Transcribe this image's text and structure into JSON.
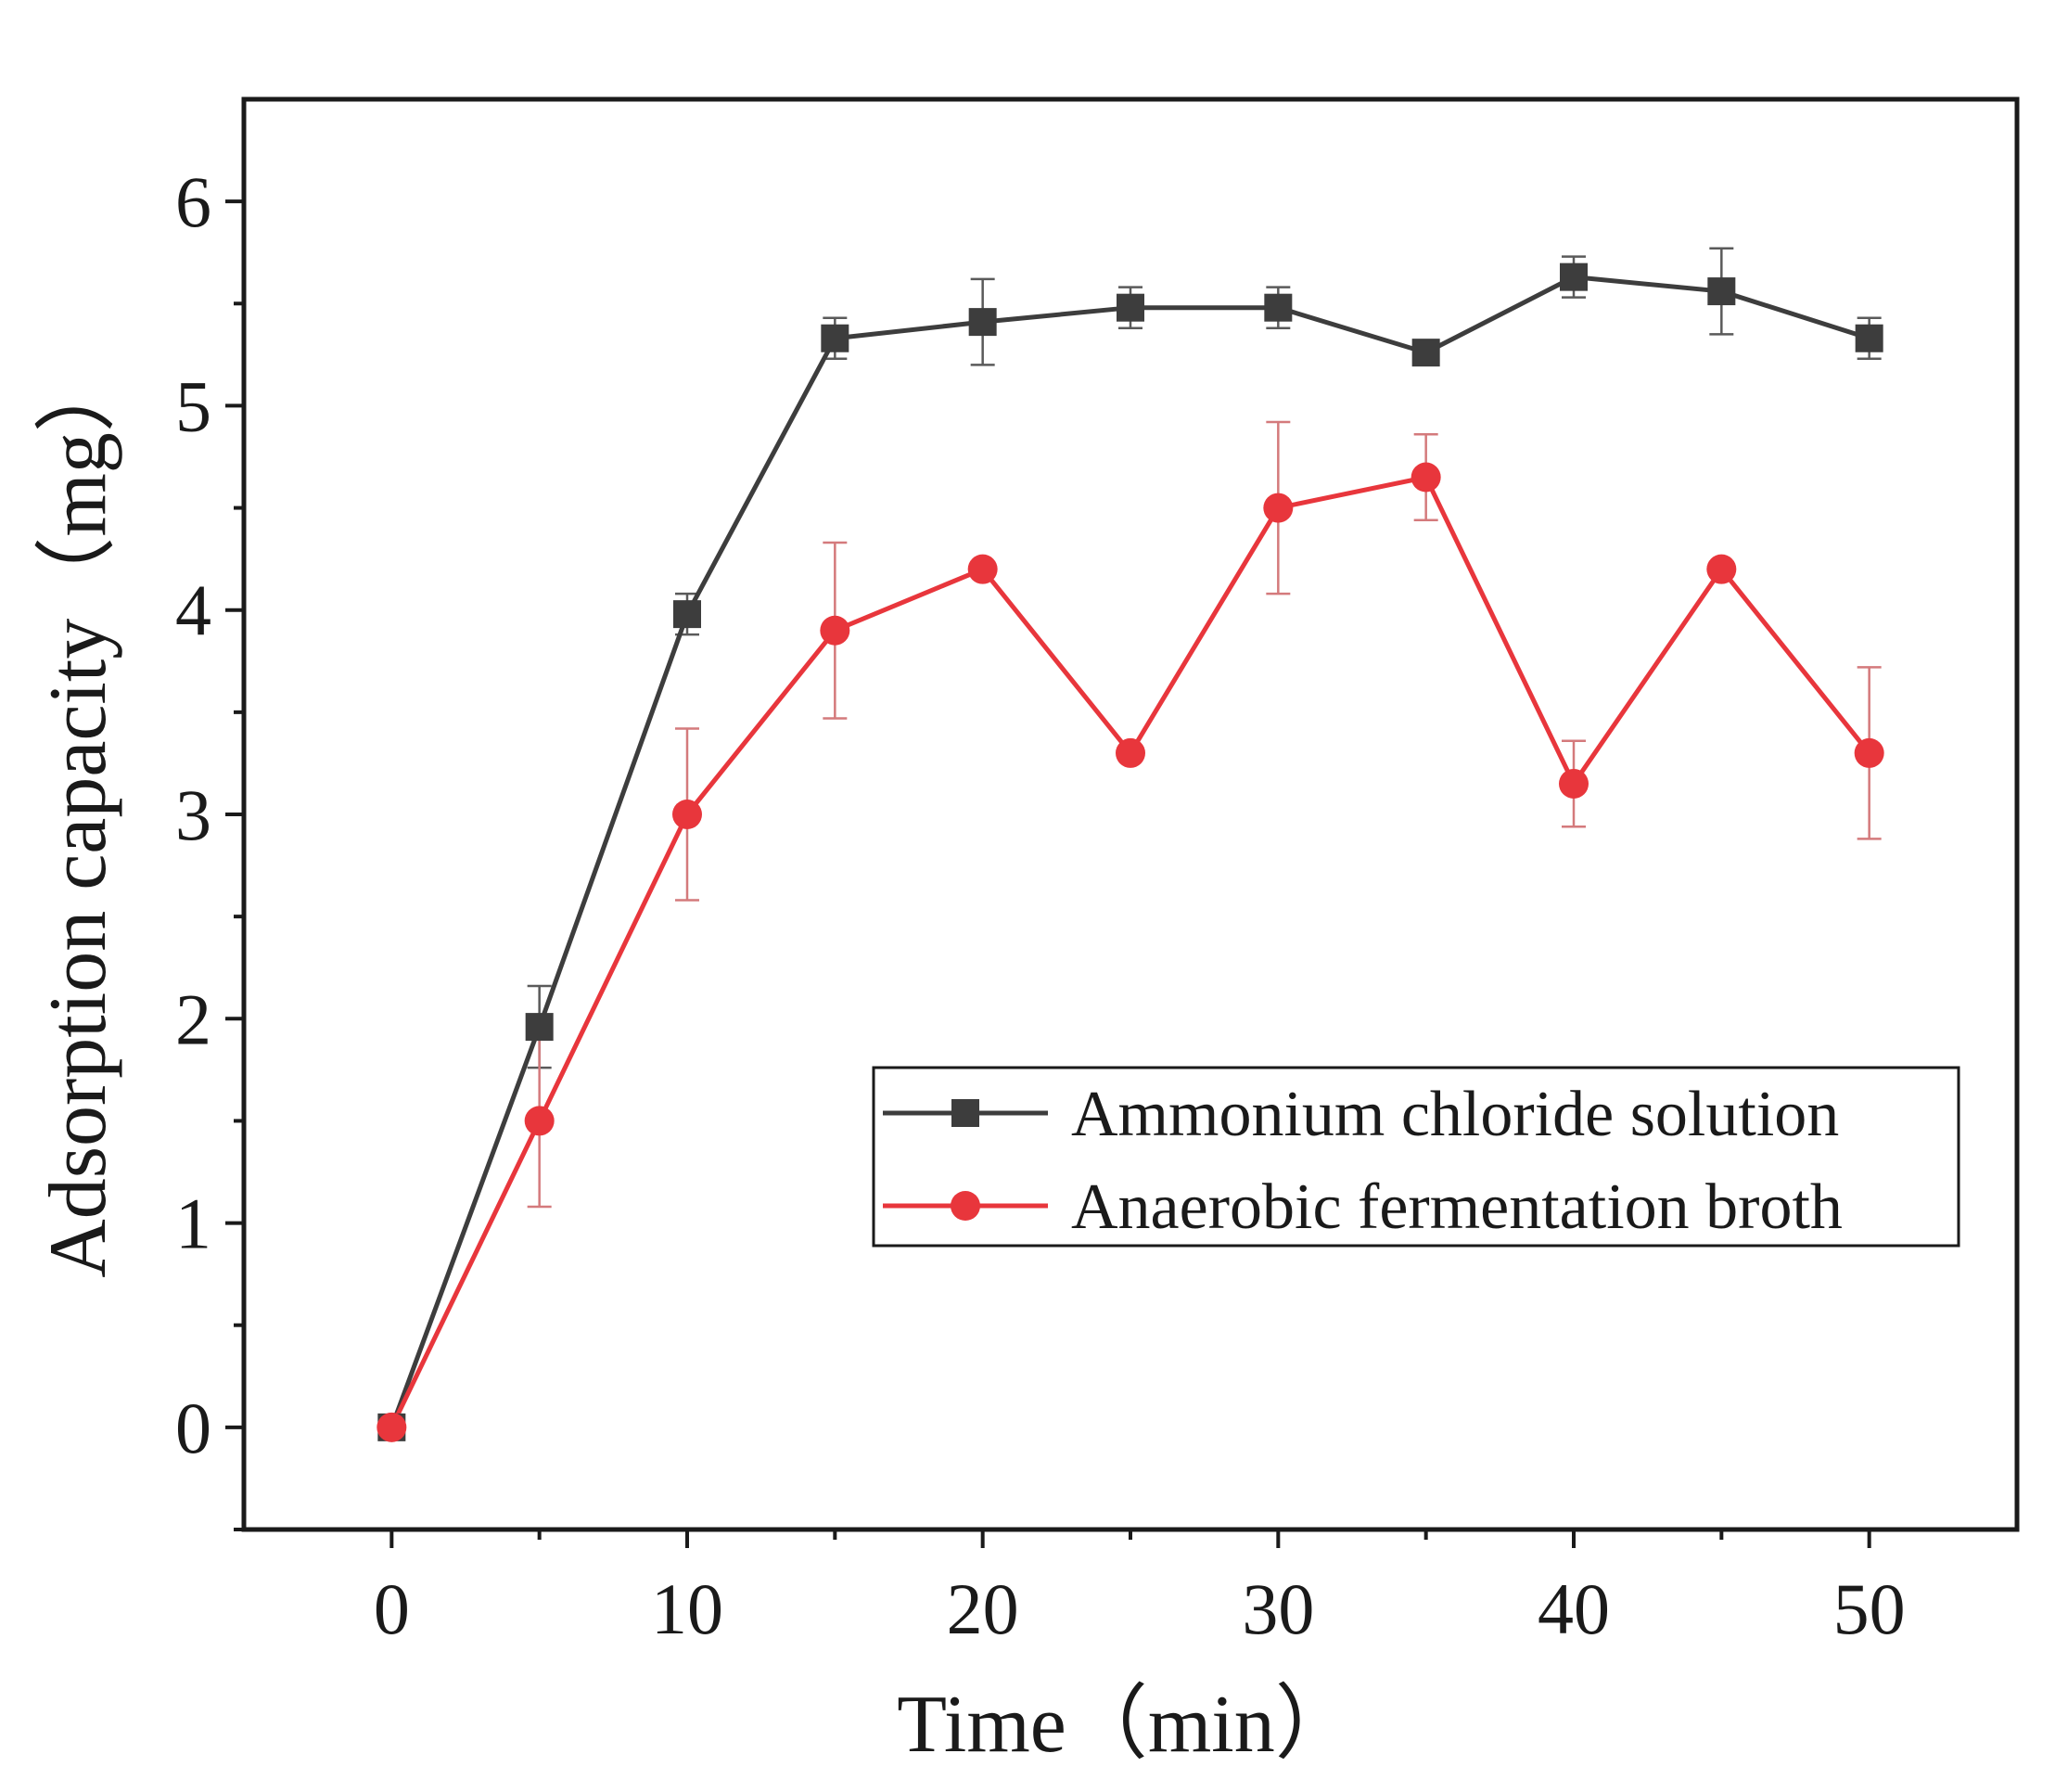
{
  "chart_data": {
    "type": "line",
    "title": "",
    "xlabel": "Time（min）",
    "ylabel": "Adsorption capacity（mg）",
    "xlim": [
      -5,
      55
    ],
    "ylim": [
      -0.5,
      6.5
    ],
    "xticks": [
      0,
      10,
      20,
      30,
      40,
      50
    ],
    "yticks": [
      0,
      1,
      2,
      3,
      4,
      5,
      6
    ],
    "x_minor_ticks": [
      5,
      15,
      25,
      35,
      45
    ],
    "y_minor_ticks": [
      -0.5,
      0.5,
      1.5,
      2.5,
      3.5,
      4.5,
      5.5
    ],
    "grid": false,
    "legend_position": "center-right",
    "x": [
      0,
      5,
      10,
      15,
      20,
      25,
      30,
      35,
      40,
      45,
      50
    ],
    "series": [
      {
        "name": "Ammonium chloride solution",
        "color": "#3d3d3d",
        "marker": "square",
        "values": [
          0,
          1.96,
          3.98,
          5.33,
          5.41,
          5.48,
          5.48,
          5.26,
          5.63,
          5.56,
          5.33
        ],
        "errors": [
          0,
          0.2,
          0.1,
          0.1,
          0.21,
          0.1,
          0.1,
          0.04,
          0.1,
          0.21,
          0.1
        ]
      },
      {
        "name": "Anaerobic fermentation broth",
        "color": "#e8363c",
        "marker": "circle",
        "values": [
          0,
          1.5,
          3.0,
          3.9,
          4.2,
          3.3,
          4.5,
          4.65,
          3.15,
          4.2,
          3.3
        ],
        "errors": [
          0,
          0.42,
          0.42,
          0.43,
          0,
          0,
          0.42,
          0.21,
          0.21,
          0,
          0.42
        ]
      }
    ]
  }
}
